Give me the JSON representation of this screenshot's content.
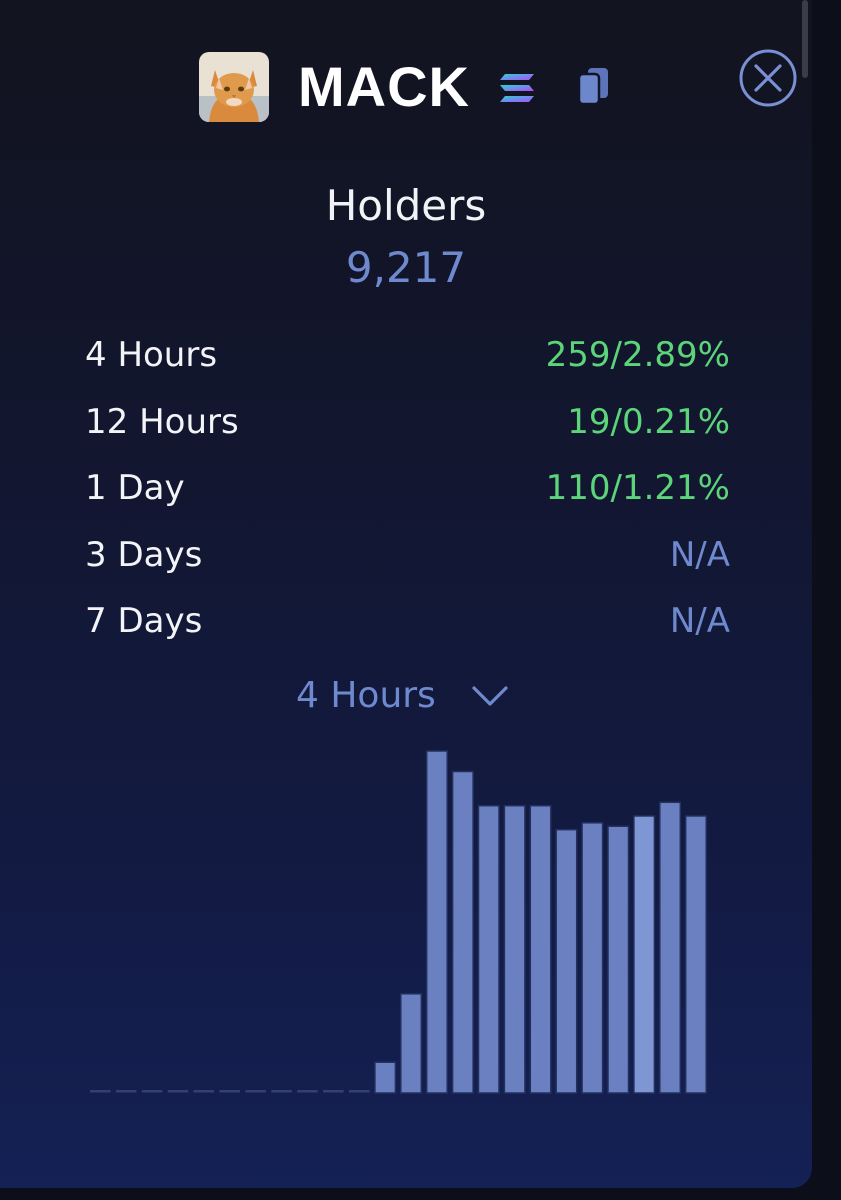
{
  "header": {
    "token_name": "MACK",
    "avatar_icon": "cat-avatar",
    "chain_icon": "solana-icon",
    "copy_icon": "copy-icon",
    "close_icon": "close-icon"
  },
  "stat": {
    "title": "Holders",
    "value": "9,217"
  },
  "changes": [
    {
      "label": "4 Hours",
      "value": "259/2.89%",
      "status": "up"
    },
    {
      "label": "12 Hours",
      "value": "19/0.21%",
      "status": "up"
    },
    {
      "label": "1 Day",
      "value": "110/1.21%",
      "status": "up"
    },
    {
      "label": "3 Days",
      "value": "N/A",
      "status": "na"
    },
    {
      "label": "7 Days",
      "value": "N/A",
      "status": "na"
    }
  ],
  "period_select": {
    "value": "4 Hours"
  },
  "colors": {
    "positive": "#5bd47a",
    "accent": "#6f89cf",
    "bar": "#6a80c0",
    "bar_highlight": "#7f96d5"
  },
  "chart_data": {
    "type": "bar",
    "values": [
      0,
      0,
      0,
      0,
      0,
      0,
      0,
      0,
      0,
      0,
      0,
      9,
      29,
      100,
      94,
      84,
      84,
      84,
      77,
      79,
      78,
      81,
      85,
      81
    ],
    "highlight_index": 21,
    "ylim": [
      0,
      100
    ],
    "grid": false
  }
}
